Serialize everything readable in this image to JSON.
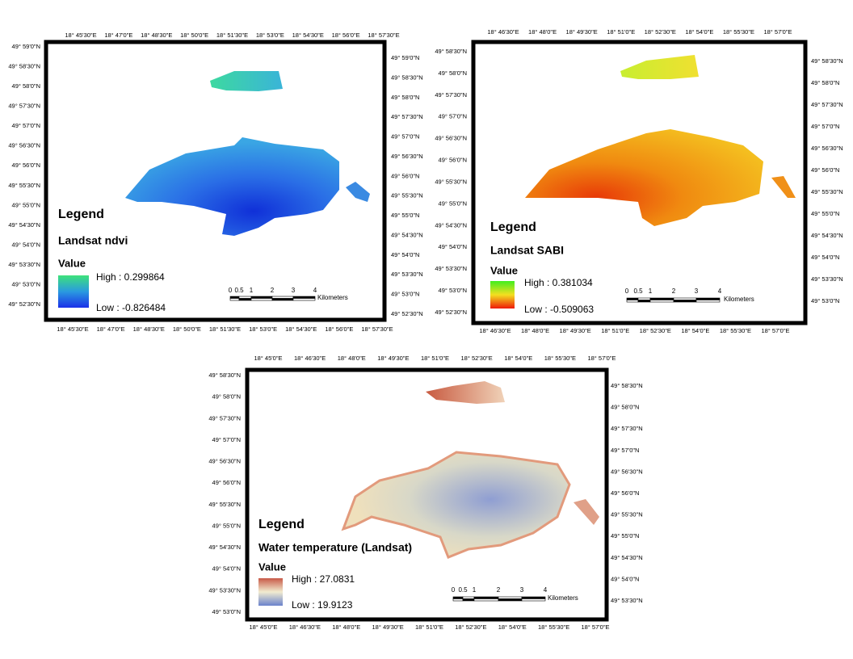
{
  "maps": [
    {
      "legend": {
        "title": "Legend",
        "layer": "Landsat ndvi",
        "value": "Value",
        "high": "High : 0.299864",
        "low": "Low : -0.826484"
      },
      "top_labels": [
        "18° 45'30\"E",
        "18° 47'0\"E",
        "18° 48'30\"E",
        "18° 50'0\"E",
        "18° 51'30\"E",
        "18° 53'0\"E",
        "18° 54'30\"E",
        "18° 56'0\"E",
        "18° 57'30\"E"
      ],
      "bottom_labels": [
        "18° 45'30\"E",
        "18° 47'0\"E",
        "18° 48'30\"E",
        "18° 50'0\"E",
        "18° 51'30\"E",
        "18° 53'0\"E",
        "18° 54'30\"E",
        "18° 56'0\"E",
        "18° 57'30\"E"
      ],
      "left_labels": [
        "49° 59'0\"N",
        "49° 58'30\"N",
        "49° 58'0\"N",
        "49° 57'30\"N",
        "49° 57'0\"N",
        "49° 56'30\"N",
        "49° 56'0\"N",
        "49° 55'30\"N",
        "49° 55'0\"N",
        "49° 54'30\"N",
        "49° 54'0\"N",
        "49° 53'30\"N",
        "49° 53'0\"N",
        "49° 52'30\"N"
      ],
      "right_labels": [
        "49° 59'0\"N",
        "49° 58'30\"N",
        "49° 58'0\"N",
        "49° 57'30\"N",
        "49° 57'0\"N",
        "49° 56'30\"N",
        "49° 56'0\"N",
        "49° 55'30\"N",
        "49° 55'0\"N",
        "49° 54'30\"N",
        "49° 54'0\"N",
        "49° 53'30\"N",
        "49° 53'0\"N",
        "49° 52'30\"N"
      ],
      "scale": {
        "labels": [
          "0",
          "0.5",
          "1",
          "2",
          "3",
          "4"
        ],
        "unit": "Kilometers"
      }
    },
    {
      "legend": {
        "title": "Legend",
        "layer": "Landsat SABI",
        "value": "Value",
        "high": "High : 0.381034",
        "low": "Low : -0.509063"
      },
      "top_labels": [
        "18° 46'30\"E",
        "18° 48'0\"E",
        "18° 49'30\"E",
        "18° 51'0\"E",
        "18° 52'30\"E",
        "18° 54'0\"E",
        "18° 55'30\"E",
        "18° 57'0\"E"
      ],
      "bottom_labels": [
        "18° 46'30\"E",
        "18° 48'0\"E",
        "18° 49'30\"E",
        "18° 51'0\"E",
        "18° 52'30\"E",
        "18° 54'0\"E",
        "18° 55'30\"E",
        "18° 57'0\"E"
      ],
      "left_labels": [
        "49° 58'30\"N",
        "49° 58'0\"N",
        "49° 57'30\"N",
        "49° 57'0\"N",
        "49° 56'30\"N",
        "49° 56'0\"N",
        "49° 55'30\"N",
        "49° 55'0\"N",
        "49° 54'30\"N",
        "49° 54'0\"N",
        "49° 53'30\"N",
        "49° 53'0\"N",
        "49° 52'30\"N"
      ],
      "right_labels": [
        "49° 58'30\"N",
        "49° 58'0\"N",
        "49° 57'30\"N",
        "49° 57'0\"N",
        "49° 56'30\"N",
        "49° 56'0\"N",
        "49° 55'30\"N",
        "49° 55'0\"N",
        "49° 54'30\"N",
        "49° 54'0\"N",
        "49° 53'30\"N",
        "49° 53'0\"N"
      ],
      "scale": {
        "labels": [
          "0",
          "0.5",
          "1",
          "2",
          "3",
          "4"
        ],
        "unit": "Kilometers"
      }
    },
    {
      "legend": {
        "title": "Legend",
        "layer": "Water temperature (Landsat)",
        "value": "Value",
        "high": "High : 27.0831",
        "low": "Low : 19.9123"
      },
      "top_labels": [
        "18° 45'0\"E",
        "18° 46'30\"E",
        "18° 48'0\"E",
        "18° 49'30\"E",
        "18° 51'0\"E",
        "18° 52'30\"E",
        "18° 54'0\"E",
        "18° 55'30\"E",
        "18° 57'0\"E"
      ],
      "bottom_labels": [
        "18° 45'0\"E",
        "18° 46'30\"E",
        "18° 48'0\"E",
        "18° 49'30\"E",
        "18° 51'0\"E",
        "18° 52'30\"E",
        "18° 54'0\"E",
        "18° 55'30\"E",
        "18° 57'0\"E"
      ],
      "left_labels": [
        "49° 58'30\"N",
        "49° 58'0\"N",
        "49° 57'30\"N",
        "49° 57'0\"N",
        "49° 56'30\"N",
        "49° 56'0\"N",
        "49° 55'30\"N",
        "49° 55'0\"N",
        "49° 54'30\"N",
        "49° 54'0\"N",
        "49° 53'30\"N",
        "49° 53'0\"N"
      ],
      "right_labels": [
        "49° 58'30\"N",
        "49° 58'0\"N",
        "49° 57'30\"N",
        "49° 57'0\"N",
        "49° 56'30\"N",
        "49° 56'0\"N",
        "49° 55'30\"N",
        "49° 55'0\"N",
        "49° 54'30\"N",
        "49° 54'0\"N",
        "49° 53'30\"N"
      ],
      "scale": {
        "labels": [
          "0",
          "0.5",
          "1",
          "2",
          "3",
          "4"
        ],
        "unit": "Kilometers"
      }
    }
  ]
}
